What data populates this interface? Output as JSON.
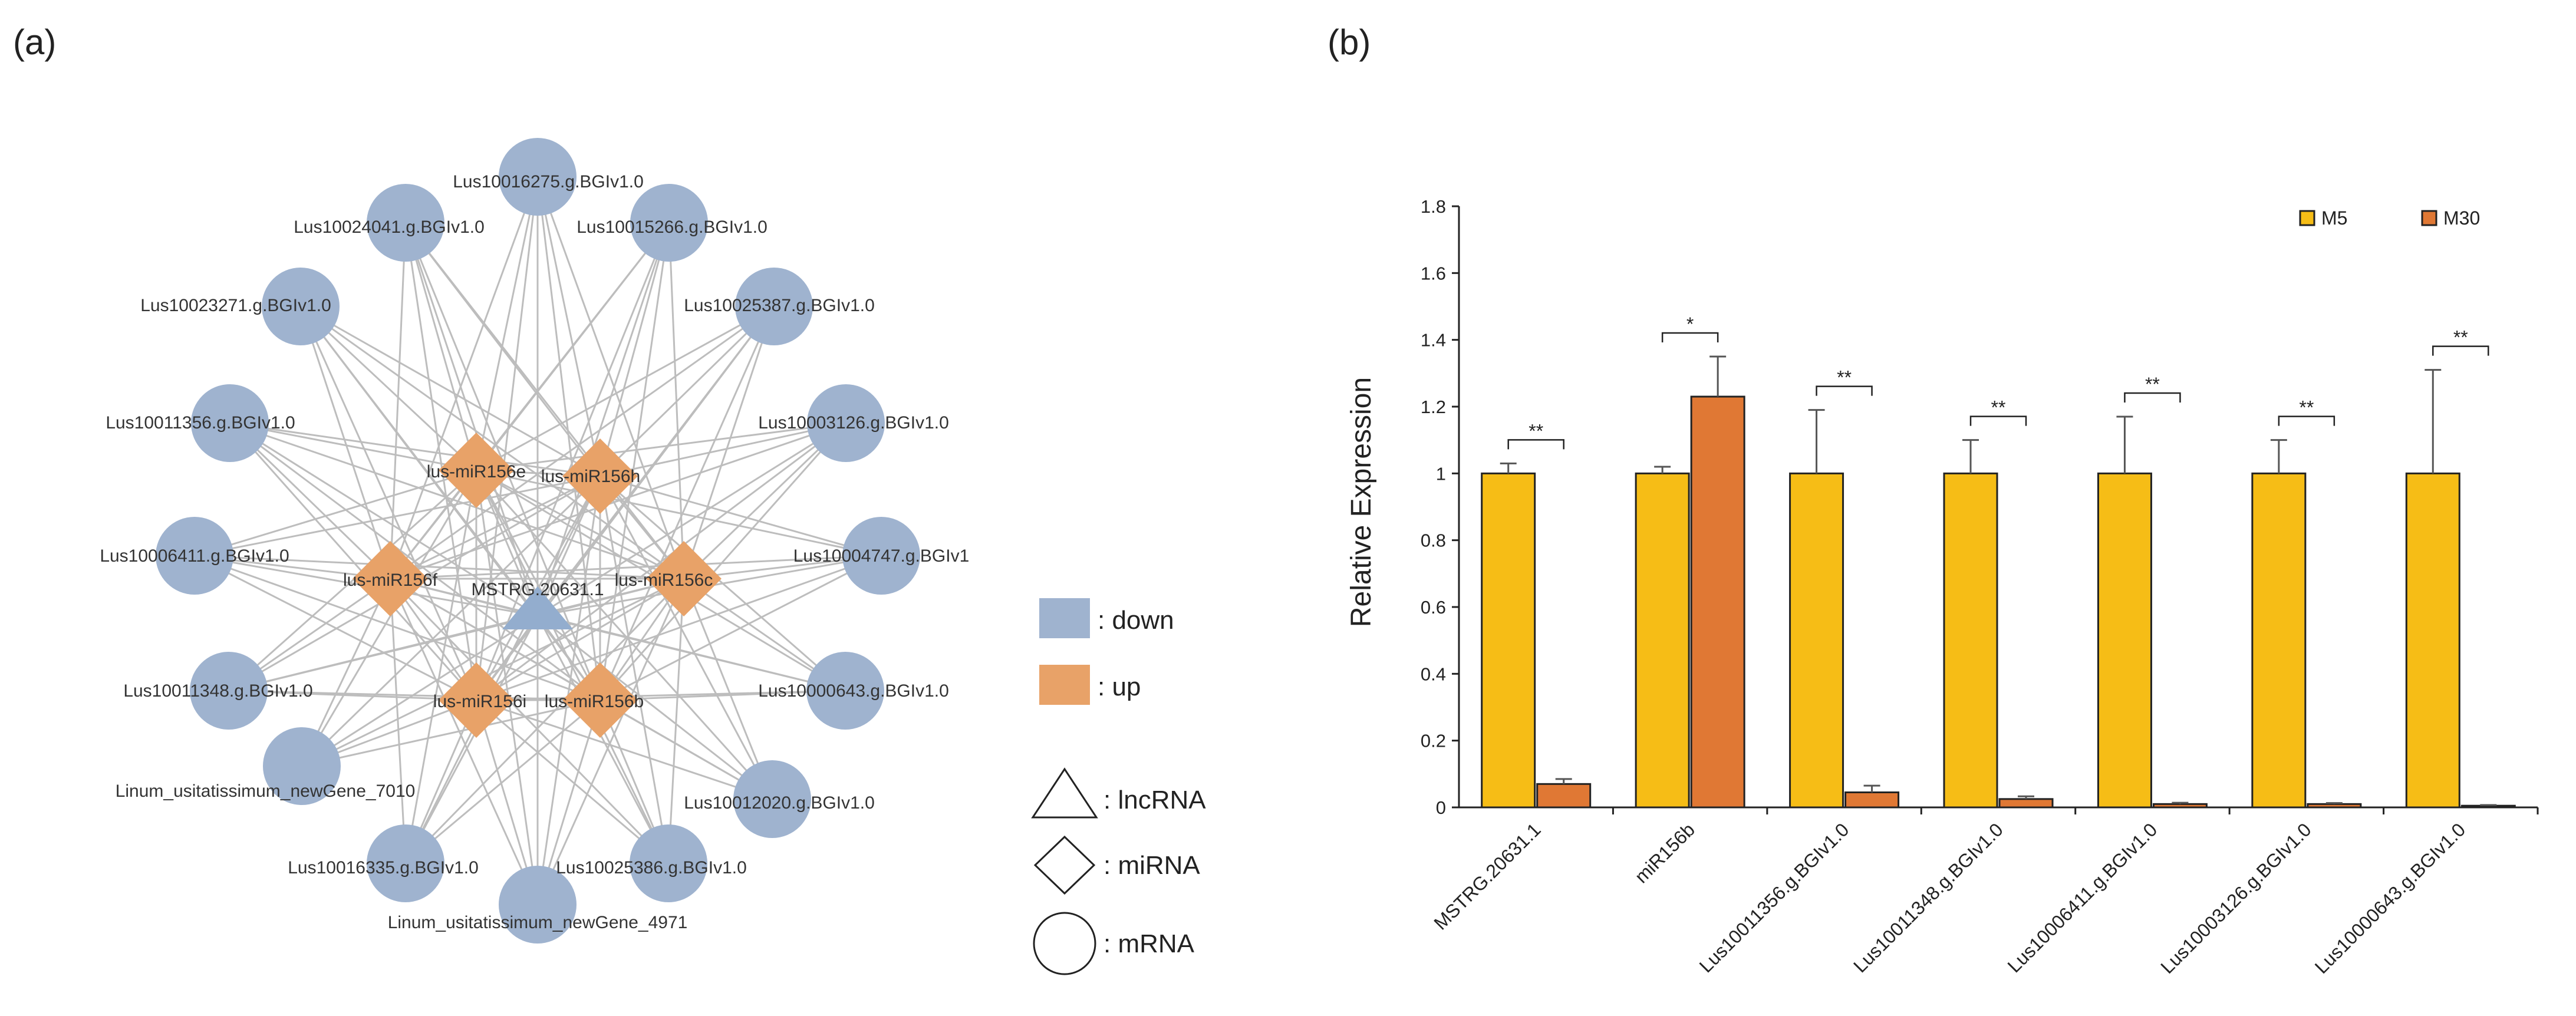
{
  "panels": {
    "a_label": "(a)",
    "b_label": "(b)"
  },
  "network": {
    "lncrna": {
      "label": "MSTRG.20631.1"
    },
    "mirnas": [
      {
        "label": "lus-miR156e"
      },
      {
        "label": "lus-miR156h"
      },
      {
        "label": "lus-miR156f"
      },
      {
        "label": "lus-miR156c"
      },
      {
        "label": "lus-miR156i"
      },
      {
        "label": "lus-miR156b"
      }
    ],
    "mrnas": [
      {
        "label": "Lus10016275.g.BGIv1.0"
      },
      {
        "label": "Lus10015266.g.BGIv1.0"
      },
      {
        "label": "Lus10025387.g.BGIv1.0"
      },
      {
        "label": "Lus10003126.g.BGIv1.0"
      },
      {
        "label": "Lus10004747.g.BGIv1"
      },
      {
        "label": "Lus10000643.g.BGIv1.0"
      },
      {
        "label": "Lus10012020.g.BGIv1.0"
      },
      {
        "label": "Lus10025386.g.BGIv1.0"
      },
      {
        "label": "Linum_usitatissimum_newGene_4971"
      },
      {
        "label": "Lus10016335.g.BGIv1.0"
      },
      {
        "label": "Linum_usitatissimum_newGene_7010"
      },
      {
        "label": "Lus10011348.g.BGIv1.0"
      },
      {
        "label": "Lus10006411.g.BGIv1.0"
      },
      {
        "label": "Lus10011356.g.BGIv1.0"
      },
      {
        "label": "Lus10023271.g.BGIv1.0"
      },
      {
        "label": "Lus10024041.g.BGIv1.0"
      }
    ],
    "legend": {
      "down": ": down",
      "up": ": up",
      "lncrna": ": lncRNA",
      "mirna": ": miRNA",
      "mrna": ": mRNA"
    },
    "colors": {
      "down": "#9fb3cf",
      "up": "#e8a268",
      "edge": "#bdbdbd"
    }
  },
  "chart_data": {
    "type": "bar",
    "title": "",
    "xlabel": "",
    "ylabel": "Relative Expression",
    "ylim": [
      0,
      1.8
    ],
    "yticks": [
      "0",
      "0.2",
      "0.4",
      "0.6",
      "0.8",
      "1",
      "1.2",
      "1.4",
      "1.6",
      "1.8"
    ],
    "categories": [
      "MSTRG.20631.1",
      "miR156b",
      "Lus10011356.g.BGIv1.0",
      "Lus10011348.g.BGIv1.0",
      "Lus10006411.g.BGIv1.0",
      "Lus10003126.g.BGIv1.0",
      "Lus10000643.g.BGIv1.0"
    ],
    "series": [
      {
        "name": "M5",
        "color": "#f6bd16",
        "values": [
          1,
          1,
          1,
          1,
          1,
          1,
          1
        ],
        "errors": [
          0.03,
          0.02,
          0.19,
          0.1,
          0.17,
          0.1,
          0.31
        ]
      },
      {
        "name": "M30",
        "color": "#e07834",
        "values": [
          0.07,
          1.23,
          0.045,
          0.025,
          0.01,
          0.01,
          0.005
        ],
        "errors": [
          0.015,
          0.12,
          0.02,
          0.008,
          0.004,
          0.003,
          0.002
        ]
      }
    ],
    "significance": [
      "**",
      "*",
      "**",
      "**",
      "**",
      "**",
      "**"
    ],
    "legend_position": "top-right"
  }
}
